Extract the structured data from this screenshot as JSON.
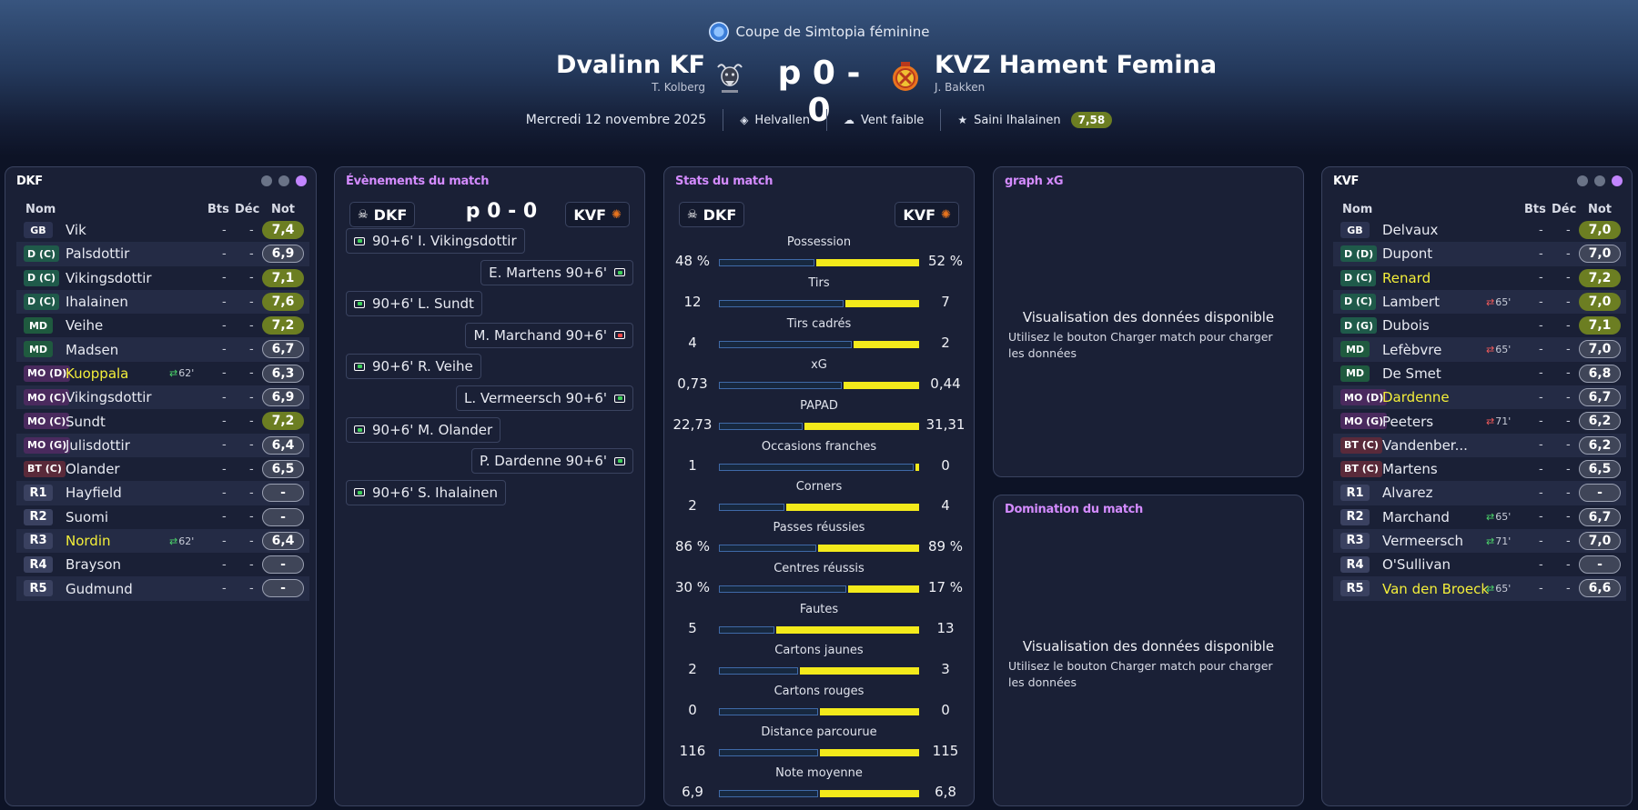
{
  "header": {
    "competition": "Coupe de Simtopia féminine",
    "home_name": "Dvalinn KF",
    "home_coach": "T. Kolberg",
    "away_name": "KVZ Hament Femina",
    "away_coach": "J. Bakken",
    "score": "p 0 - 0",
    "date": "Mercredi 12 novembre 2025",
    "stadium": "Helvallen",
    "weather": "Vent faible",
    "player_of_match": "Saini Ihalainen",
    "player_of_match_rating": "7,58"
  },
  "columns": {
    "nom": "Nom",
    "bts": "Bts",
    "dec": "Déc",
    "not": "Not"
  },
  "home_panel": {
    "title": "DKF",
    "players": [
      {
        "pos": "GB",
        "name": "Vik",
        "bts": "-",
        "dec": "-",
        "rating": "7,4",
        "green": true
      },
      {
        "pos": "D (C)",
        "name": "Palsdottir",
        "bts": "-",
        "dec": "-",
        "rating": "6,9"
      },
      {
        "pos": "D (C)",
        "name": "Vikingsdottir",
        "bts": "-",
        "dec": "-",
        "rating": "7,1",
        "green": true
      },
      {
        "pos": "D (C)",
        "name": "Ihalainen",
        "bts": "-",
        "dec": "-",
        "rating": "7,6",
        "green": true
      },
      {
        "pos": "MD",
        "name": "Veihe",
        "bts": "-",
        "dec": "-",
        "rating": "7,2",
        "green": true
      },
      {
        "pos": "MD",
        "name": "Madsen",
        "bts": "-",
        "dec": "-",
        "rating": "6,7"
      },
      {
        "pos": "MO (D)",
        "name": "Kuoppala",
        "sub": "62'",
        "bts": "-",
        "dec": "-",
        "rating": "6,3",
        "yellow": true
      },
      {
        "pos": "MO (C)",
        "name": "Vikingsdottir",
        "bts": "-",
        "dec": "-",
        "rating": "6,9"
      },
      {
        "pos": "MO (C)",
        "name": "Sundt",
        "bts": "-",
        "dec": "-",
        "rating": "7,2",
        "green": true
      },
      {
        "pos": "MO (G)",
        "name": "Julisdottir",
        "bts": "-",
        "dec": "-",
        "rating": "6,4"
      },
      {
        "pos": "BT (C)",
        "name": "Olander",
        "bts": "-",
        "dec": "-",
        "rating": "6,5"
      },
      {
        "pos": "R1",
        "name": "Hayfield",
        "bts": "-",
        "dec": "-",
        "rating": "-"
      },
      {
        "pos": "R2",
        "name": "Suomi",
        "bts": "-",
        "dec": "-",
        "rating": "-"
      },
      {
        "pos": "R3",
        "name": "Nordin",
        "sub": "62'",
        "bts": "-",
        "dec": "-",
        "rating": "6,4",
        "yellow": true
      },
      {
        "pos": "R4",
        "name": "Brayson",
        "bts": "-",
        "dec": "-",
        "rating": "-"
      },
      {
        "pos": "R5",
        "name": "Gudmund",
        "bts": "-",
        "dec": "-",
        "rating": "-"
      }
    ]
  },
  "away_panel": {
    "title": "KVF",
    "players": [
      {
        "pos": "GB",
        "name": "Delvaux",
        "bts": "-",
        "dec": "-",
        "rating": "7,0",
        "green": true
      },
      {
        "pos": "D (D)",
        "name": "Dupont",
        "bts": "-",
        "dec": "-",
        "rating": "7,0"
      },
      {
        "pos": "D (C)",
        "name": "Renard",
        "bts": "-",
        "dec": "-",
        "rating": "7,2",
        "green": true,
        "yellow": true
      },
      {
        "pos": "D (C)",
        "name": "Lambert",
        "sub": "65'",
        "bts": "-",
        "dec": "-",
        "rating": "7,0",
        "green": true
      },
      {
        "pos": "D (G)",
        "name": "Dubois",
        "bts": "-",
        "dec": "-",
        "rating": "7,1",
        "green": true
      },
      {
        "pos": "MD",
        "name": "Lefèbvre",
        "sub": "65'",
        "bts": "-",
        "dec": "-",
        "rating": "7,0"
      },
      {
        "pos": "MD",
        "name": "De Smet",
        "bts": "-",
        "dec": "-",
        "rating": "6,8"
      },
      {
        "pos": "MO (D)",
        "name": "Dardenne",
        "bts": "-",
        "dec": "-",
        "rating": "6,7",
        "yellow": true
      },
      {
        "pos": "MO (G)",
        "name": "Peeters",
        "sub": "71'",
        "bts": "-",
        "dec": "-",
        "rating": "6,2"
      },
      {
        "pos": "BT (C)",
        "name": "Vandenber...",
        "bts": "-",
        "dec": "-",
        "rating": "6,2"
      },
      {
        "pos": "BT (C)",
        "name": "Martens",
        "bts": "-",
        "dec": "-",
        "rating": "6,5"
      },
      {
        "pos": "R1",
        "name": "Alvarez",
        "bts": "-",
        "dec": "-",
        "rating": "-"
      },
      {
        "pos": "R2",
        "name": "Marchand",
        "sub": "65'",
        "bts": "-",
        "dec": "-",
        "rating": "6,7"
      },
      {
        "pos": "R3",
        "name": "Vermeersch",
        "sub": "71'",
        "bts": "-",
        "dec": "-",
        "rating": "7,0"
      },
      {
        "pos": "R4",
        "name": "O'Sullivan",
        "bts": "-",
        "dec": "-",
        "rating": "-"
      },
      {
        "pos": "R5",
        "name": "Van den Broeck",
        "sub": "65'",
        "bts": "-",
        "dec": "-",
        "rating": "6,6",
        "yellow": true
      }
    ]
  },
  "events_panel": {
    "title": "Évènements du match",
    "home_chip": "DKF",
    "away_chip": "KVF",
    "score": "p 0 - 0",
    "events": [
      {
        "side": "home",
        "text": "90+6' I. Vikingsdottir",
        "icon": "penalty-scored-icon"
      },
      {
        "side": "away",
        "text": "E. Martens 90+6'",
        "icon": "penalty-scored-icon"
      },
      {
        "side": "home",
        "text": "90+6' L. Sundt",
        "icon": "penalty-scored-icon"
      },
      {
        "side": "away",
        "text": "M. Marchand 90+6'",
        "icon": "penalty-missed-icon",
        "missed": true
      },
      {
        "side": "home",
        "text": "90+6' R. Veihe",
        "icon": "penalty-scored-icon"
      },
      {
        "side": "away",
        "text": "L. Vermeersch 90+6'",
        "icon": "penalty-scored-icon"
      },
      {
        "side": "home",
        "text": "90+6' M. Olander",
        "icon": "penalty-scored-icon"
      },
      {
        "side": "away",
        "text": "P. Dardenne 90+6'",
        "icon": "penalty-scored-icon"
      },
      {
        "side": "home",
        "text": "90+6' S. Ihalainen",
        "icon": "penalty-scored-icon"
      }
    ]
  },
  "stats_panel": {
    "title": "Stats du match",
    "home_chip": "DKF",
    "away_chip": "KVF",
    "stats": [
      {
        "label": "Possession",
        "home": "48 %",
        "away": "52 %",
        "home_frac": 0.48,
        "away_frac": 0.52
      },
      {
        "label": "Tirs",
        "home": "12",
        "away": "7",
        "home_frac": 0.63,
        "away_frac": 0.37
      },
      {
        "label": "Tirs cadrés",
        "home": "4",
        "away": "2",
        "home_frac": 0.67,
        "away_frac": 0.33
      },
      {
        "label": "xG",
        "home": "0,73",
        "away": "0,44",
        "home_frac": 0.62,
        "away_frac": 0.38
      },
      {
        "label": "PAPAD",
        "home": "22,73",
        "away": "31,31",
        "home_frac": 0.42,
        "away_frac": 0.58
      },
      {
        "label": "Occasions franches",
        "home": "1",
        "away": "0",
        "home_frac": 0.98,
        "away_frac": 0.02
      },
      {
        "label": "Corners",
        "home": "2",
        "away": "4",
        "home_frac": 0.33,
        "away_frac": 0.67
      },
      {
        "label": "Passes réussies",
        "home": "86 %",
        "away": "89 %",
        "home_frac": 0.49,
        "away_frac": 0.51
      },
      {
        "label": "Centres réussis",
        "home": "30 %",
        "away": "17 %",
        "home_frac": 0.64,
        "away_frac": 0.36
      },
      {
        "label": "Fautes",
        "home": "5",
        "away": "13",
        "home_frac": 0.28,
        "away_frac": 0.72
      },
      {
        "label": "Cartons jaunes",
        "home": "2",
        "away": "3",
        "home_frac": 0.4,
        "away_frac": 0.6
      },
      {
        "label": "Cartons rouges",
        "home": "0",
        "away": "0",
        "home_frac": 0.5,
        "away_frac": 0.5
      },
      {
        "label": "Distance parcourue",
        "home": "116",
        "away": "115",
        "home_frac": 0.5,
        "away_frac": 0.5
      },
      {
        "label": "Note moyenne",
        "home": "6,9",
        "away": "6,8",
        "home_frac": 0.5,
        "away_frac": 0.5
      }
    ]
  },
  "xg_panel": {
    "title": "graph xG",
    "empty_title": "Visualisation des données disponible",
    "empty_sub": "Utilisez le bouton Charger match pour charger les données"
  },
  "dom_panel": {
    "title": "Domination du match",
    "empty_title": "Visualisation des données disponible",
    "empty_sub": "Utilisez le bouton Charger match pour charger les données"
  },
  "colors": {
    "accent": "#d48bff",
    "rating_green": "#6c7e22",
    "bar_away": "#f3ea1b",
    "highlight_name": "#f4ef3a"
  }
}
